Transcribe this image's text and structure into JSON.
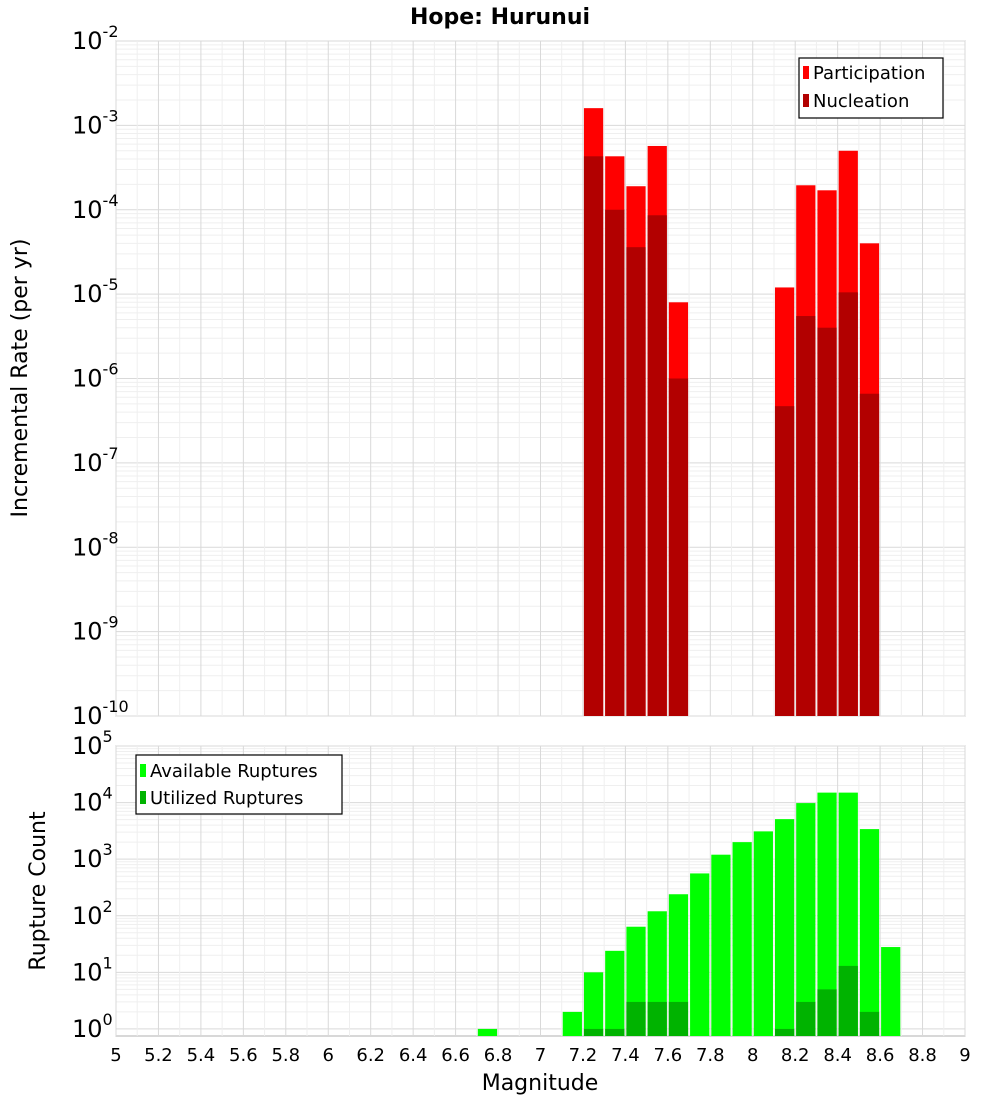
{
  "colors": {
    "participation": "#ff0000",
    "nucleation": "#b20000",
    "available": "#00ff00",
    "utilized": "#00b300"
  },
  "chart_data": [
    {
      "type": "bar",
      "title": "Hope: Hurunui",
      "xlabel": "",
      "ylabel": "Incremental Rate (per yr)",
      "yscale": "log",
      "ylim": [
        1e-10,
        0.01
      ],
      "xlim": [
        5,
        9
      ],
      "bin_width": 0.1,
      "grid": true,
      "legend_position": "top-right",
      "series": [
        {
          "name": "Participation",
          "x": [
            7.25,
            7.35,
            7.45,
            7.55,
            7.65,
            8.15,
            8.25,
            8.35,
            8.45,
            8.55
          ],
          "values": [
            0.0016,
            0.00043,
            0.00019,
            0.00057,
            8e-06,
            1.2e-05,
            0.000195,
            0.00017,
            0.0005,
            4e-05
          ]
        },
        {
          "name": "Nucleation",
          "x": [
            7.25,
            7.35,
            7.45,
            7.55,
            7.65,
            8.15,
            8.25,
            8.35,
            8.45,
            8.55
          ],
          "values": [
            0.00043,
            0.0001,
            3.6e-05,
            8.6e-05,
            1e-06,
            4.7e-07,
            5.5e-06,
            4e-06,
            1.05e-05,
            6.6e-07
          ]
        }
      ]
    },
    {
      "type": "bar",
      "title": "",
      "xlabel": "Magnitude",
      "ylabel": "Rupture Count",
      "yscale": "log",
      "ylim": [
        0.75,
        100000.0
      ],
      "xlim": [
        5,
        9
      ],
      "bin_width": 0.1,
      "grid": true,
      "legend_position": "top-left",
      "x_ticks": [
        "5",
        "5.2",
        "5.4",
        "5.6",
        "5.8",
        "6",
        "6.2",
        "6.4",
        "6.6",
        "6.8",
        "7",
        "7.2",
        "7.4",
        "7.6",
        "7.8",
        "8",
        "8.2",
        "8.4",
        "8.6",
        "8.8",
        "9"
      ],
      "series": [
        {
          "name": "Available Ruptures",
          "x": [
            6.75,
            7.15,
            7.25,
            7.35,
            7.45,
            7.55,
            7.65,
            7.75,
            7.85,
            7.95,
            8.05,
            8.15,
            8.25,
            8.35,
            8.45,
            8.55,
            8.65
          ],
          "values": [
            1,
            2,
            10,
            24,
            64,
            120,
            240,
            560,
            1200,
            2000,
            3100,
            5100,
            9800,
            15000,
            15000,
            3400,
            28
          ]
        },
        {
          "name": "Utilized Ruptures",
          "x": [
            7.25,
            7.35,
            7.45,
            7.55,
            7.65,
            8.15,
            8.25,
            8.35,
            8.45,
            8.55
          ],
          "values": [
            1,
            1,
            3,
            3,
            3,
            1,
            3,
            5,
            13,
            2
          ]
        }
      ]
    }
  ]
}
